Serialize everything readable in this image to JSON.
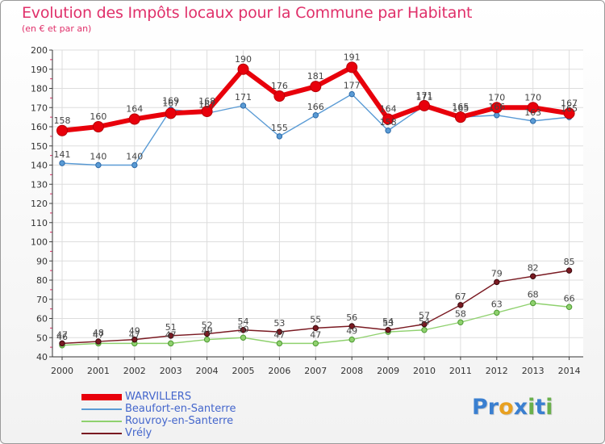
{
  "title": "Evolution des Impôts locaux pour la Commune par Habitant",
  "subtitle": "(en € et par an)",
  "logo": {
    "letters": [
      "P",
      "r",
      "o",
      "x",
      "i",
      "t",
      "i"
    ],
    "colors": [
      "#3a7fd0",
      "#3a7fd0",
      "#e8a020",
      "#3a7fd0",
      "#6ab04c",
      "#3a7fd0",
      "#6ab04c"
    ]
  },
  "chart_data": {
    "type": "line",
    "x": [
      "2000",
      "2001",
      "2002",
      "2003",
      "2004",
      "2005",
      "2006",
      "2007",
      "2008",
      "2009",
      "2010",
      "2011",
      "2012",
      "2013",
      "2014"
    ],
    "ylim": [
      40,
      200
    ],
    "yticks": [
      "40",
      "50",
      "60",
      "70",
      "80",
      "90",
      "100",
      "110",
      "120",
      "130",
      "140",
      "150",
      "160",
      "170",
      "180",
      "190",
      "200"
    ],
    "grid": true,
    "legend_position": "bottom-left",
    "series": [
      {
        "name": "WARVILLERS",
        "color": "#e8000b",
        "values": [
          158,
          160,
          164,
          167,
          168,
          190,
          176,
          181,
          191,
          164,
          171,
          165,
          170,
          170,
          167
        ],
        "labels": [
          "158",
          "160",
          "164",
          "167",
          "168",
          "190",
          "176",
          "181",
          "191",
          "164",
          "171",
          "165",
          "170",
          "170",
          "167"
        ]
      },
      {
        "name": "Beaufort-en-Santerre",
        "color": "#5a9bd5",
        "values": [
          141,
          140,
          140,
          169,
          167,
          171,
          155,
          166,
          177,
          158,
          171,
          165,
          166,
          163,
          165
        ],
        "labels": [
          "141",
          "140",
          "140",
          "169",
          "167",
          "171",
          "155",
          "166",
          "177",
          "158",
          "171",
          "165",
          "166",
          "163",
          "165"
        ]
      },
      {
        "name": "Rouvroy-en-Santerre",
        "color": "#8fd16e",
        "values": [
          46,
          47,
          47,
          47,
          49,
          50,
          47,
          47,
          49,
          53,
          54,
          58,
          63,
          68,
          66
        ],
        "labels": [
          "46",
          "47",
          "47",
          "47",
          "49",
          "50",
          "47",
          "47",
          "49",
          "53",
          "54",
          "58",
          "63",
          "68",
          "66"
        ]
      },
      {
        "name": "Vrély",
        "color": "#7a1a22",
        "values": [
          47,
          48,
          49,
          51,
          52,
          54,
          53,
          55,
          56,
          54,
          57,
          67,
          79,
          82,
          85
        ],
        "labels": [
          "47",
          "48",
          "49",
          "51",
          "52",
          "54",
          "53",
          "55",
          "56",
          "54",
          "57",
          "67",
          "79",
          "82",
          "85"
        ]
      }
    ]
  }
}
